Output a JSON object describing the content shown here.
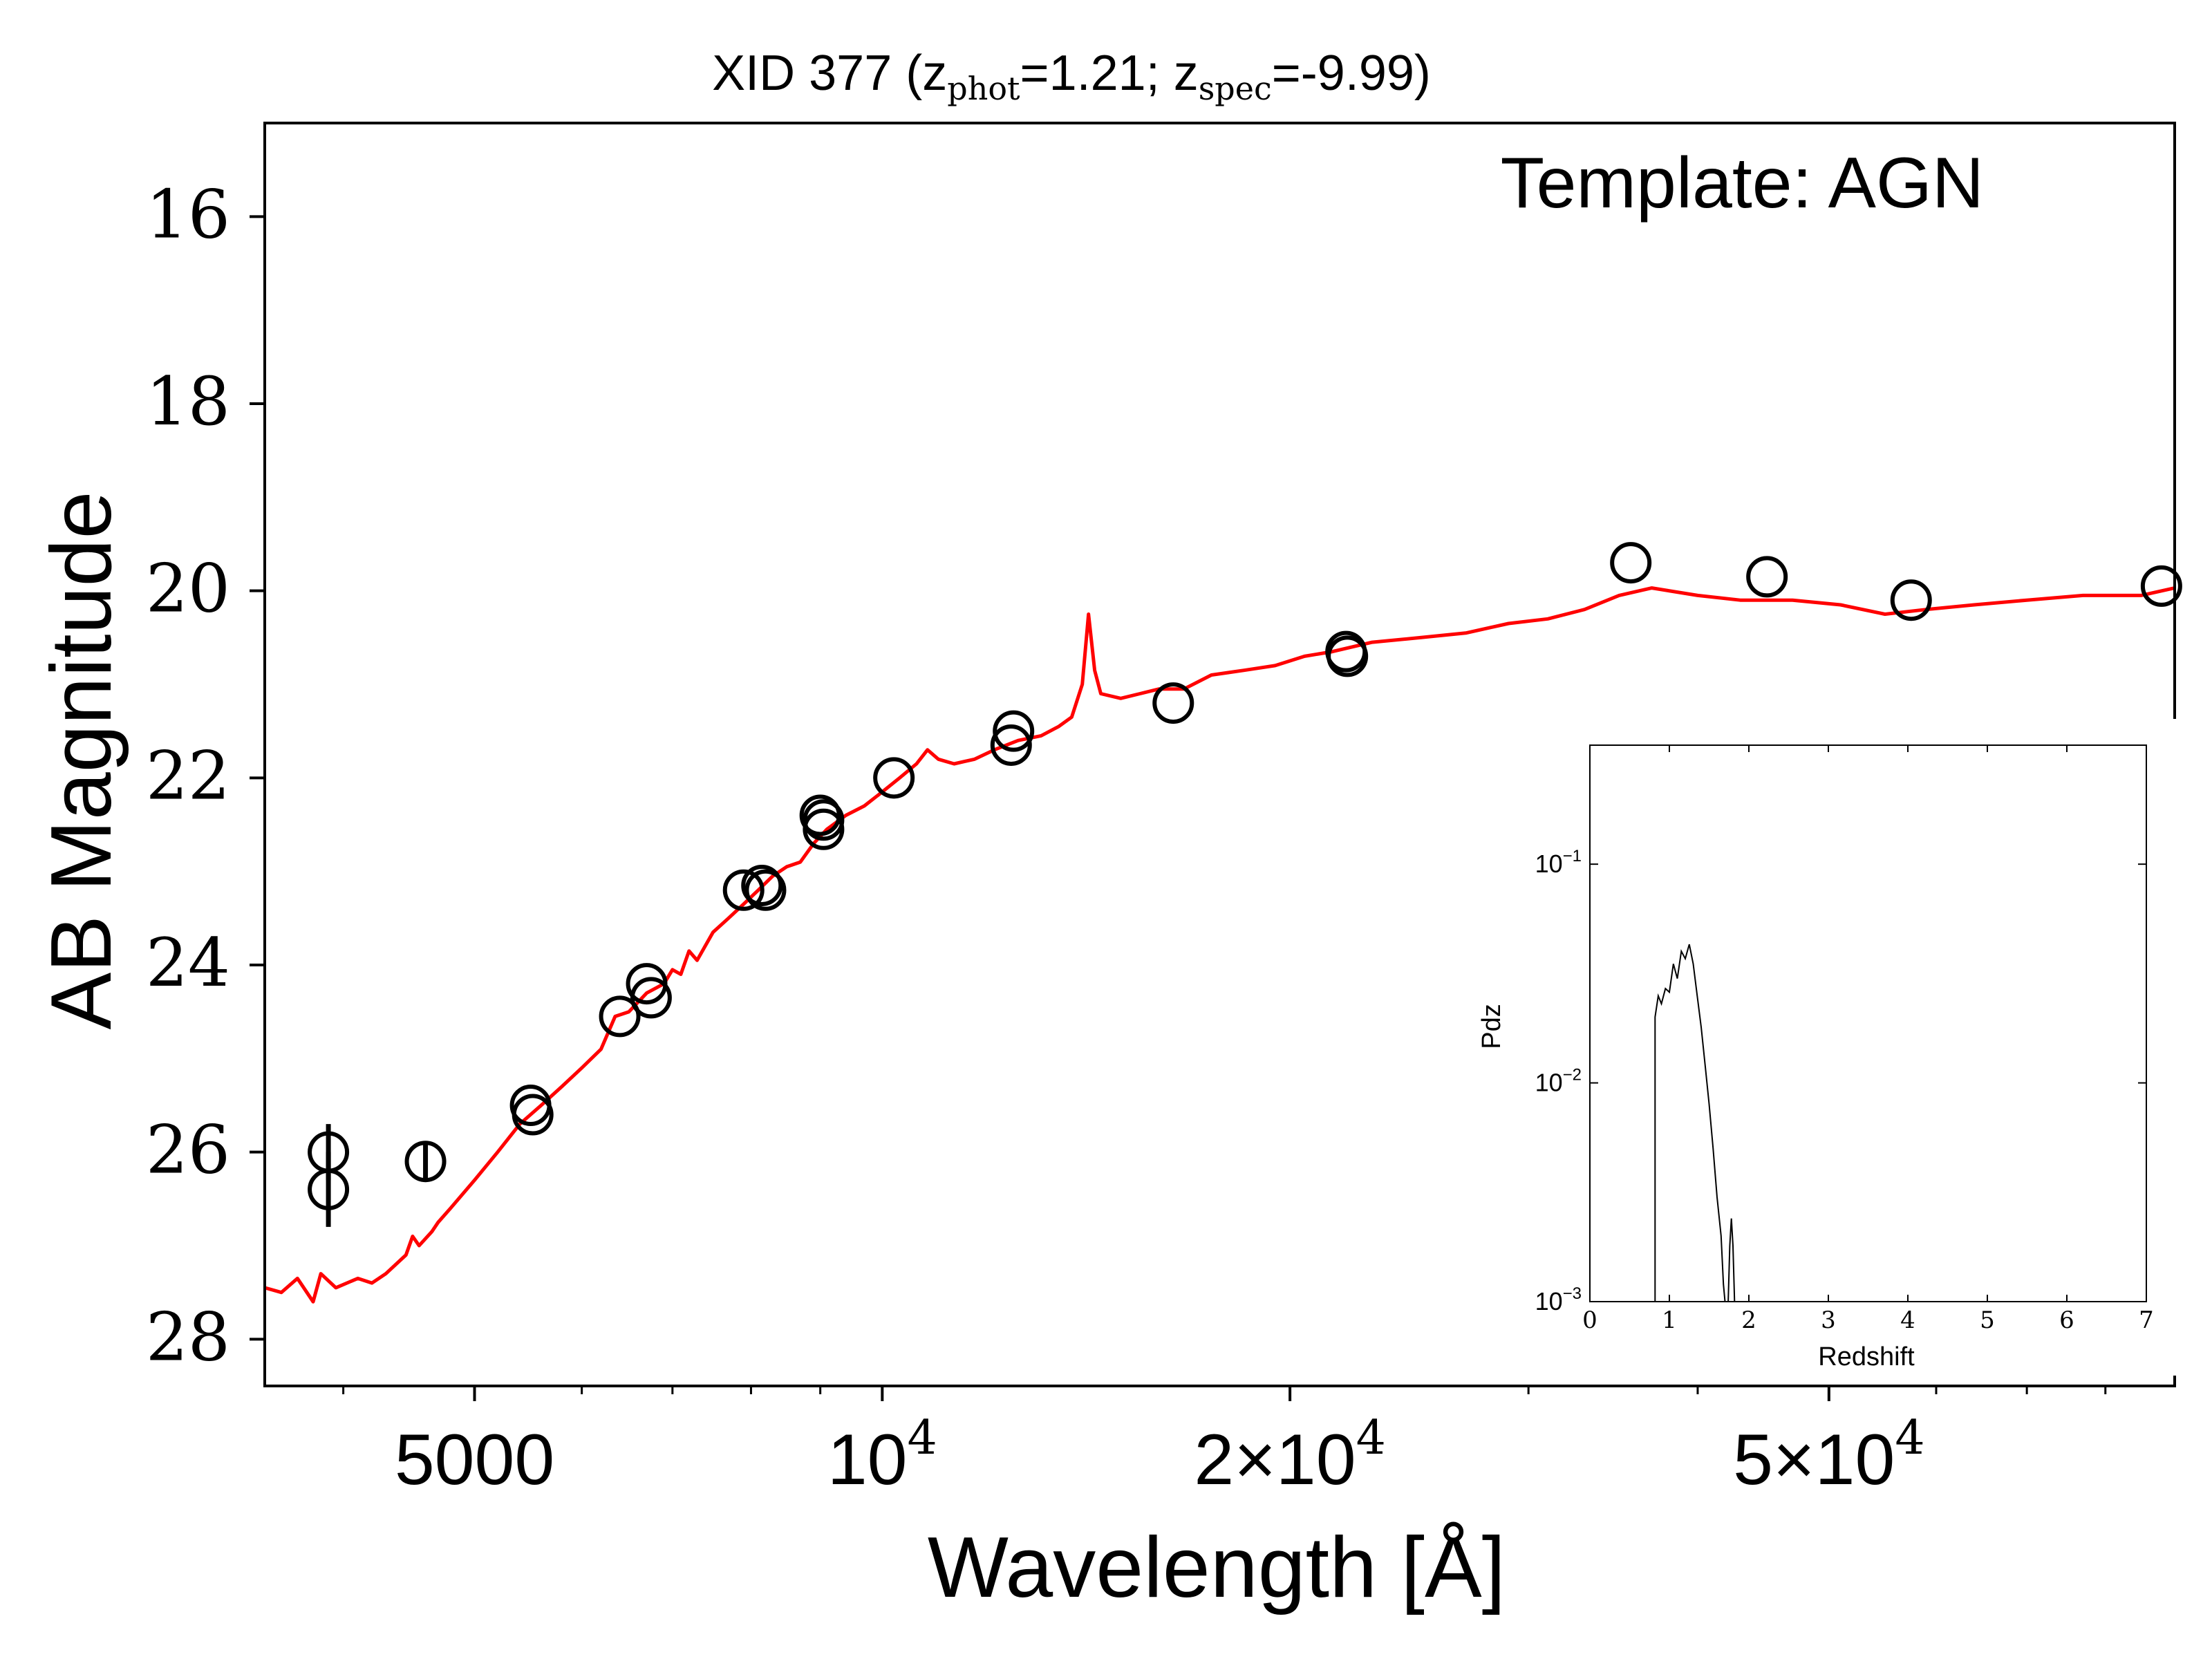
{
  "chart_data": [
    {
      "type": "scatter",
      "title_parts": [
        "XID 377 (z",
        "phot",
        "=1.21; z",
        "spec",
        "=-9.99)"
      ],
      "annotation": "Template: AGN",
      "xlabel": "Wavelength [Å]",
      "ylabel": "AB Magnitude",
      "xscale": "log",
      "xlim": [
        3500,
        90000
      ],
      "ylim": [
        28.5,
        15
      ],
      "y_inverted": true,
      "xticks": [
        {
          "value": 5000,
          "base": "5000",
          "exp": ""
        },
        {
          "value": 10000,
          "base": "10",
          "exp": "4"
        },
        {
          "value": 20000,
          "base": "2×10",
          "exp": "4"
        },
        {
          "value": 50000,
          "base": "5×10",
          "exp": "4"
        }
      ],
      "yticks": [
        16,
        18,
        20,
        22,
        24,
        26,
        28
      ],
      "colors": {
        "template": "#ff0000",
        "points": "#000000"
      },
      "series": [
        {
          "name": "photometry",
          "points": [
            {
              "x": 3900,
              "y": 26.0,
              "err": 0.3
            },
            {
              "x": 3900,
              "y": 26.4,
              "err": 0.4
            },
            {
              "x": 4600,
              "y": 26.1,
              "err": 0.2
            },
            {
              "x": 5500,
              "y": 25.5
            },
            {
              "x": 5520,
              "y": 25.6
            },
            {
              "x": 6400,
              "y": 24.55
            },
            {
              "x": 6700,
              "y": 24.2
            },
            {
              "x": 6750,
              "y": 24.35
            },
            {
              "x": 7900,
              "y": 23.2
            },
            {
              "x": 8150,
              "y": 23.15
            },
            {
              "x": 8200,
              "y": 23.2
            },
            {
              "x": 9000,
              "y": 22.4
            },
            {
              "x": 9050,
              "y": 22.45
            },
            {
              "x": 9050,
              "y": 22.55
            },
            {
              "x": 10200,
              "y": 22.0
            },
            {
              "x": 12500,
              "y": 21.5
            },
            {
              "x": 12450,
              "y": 21.65
            },
            {
              "x": 16400,
              "y": 21.2
            },
            {
              "x": 22000,
              "y": 20.65
            },
            {
              "x": 22050,
              "y": 20.7
            },
            {
              "x": 35700,
              "y": 19.7
            },
            {
              "x": 45000,
              "y": 19.85
            },
            {
              "x": 57500,
              "y": 20.1
            },
            {
              "x": 88000,
              "y": 19.95
            }
          ]
        },
        {
          "name": "template",
          "line": [
            [
              3500,
              27.45
            ],
            [
              3600,
              27.5
            ],
            [
              3700,
              27.35
            ],
            [
              3800,
              27.6
            ],
            [
              3850,
              27.3
            ],
            [
              3950,
              27.45
            ],
            [
              4100,
              27.35
            ],
            [
              4200,
              27.4
            ],
            [
              4300,
              27.3
            ],
            [
              4450,
              27.1
            ],
            [
              4500,
              26.9
            ],
            [
              4550,
              27.0
            ],
            [
              4650,
              26.85
            ],
            [
              4700,
              26.75
            ],
            [
              4800,
              26.6
            ],
            [
              5000,
              26.3
            ],
            [
              5200,
              26.0
            ],
            [
              5400,
              25.7
            ],
            [
              5600,
              25.5
            ],
            [
              5800,
              25.3
            ],
            [
              6000,
              25.1
            ],
            [
              6200,
              24.9
            ],
            [
              6350,
              24.55
            ],
            [
              6500,
              24.5
            ],
            [
              6700,
              24.3
            ],
            [
              6900,
              24.2
            ],
            [
              7000,
              24.05
            ],
            [
              7100,
              24.1
            ],
            [
              7200,
              23.85
            ],
            [
              7300,
              23.95
            ],
            [
              7500,
              23.65
            ],
            [
              7700,
              23.5
            ],
            [
              7900,
              23.35
            ],
            [
              8100,
              23.2
            ],
            [
              8300,
              23.05
            ],
            [
              8500,
              22.95
            ],
            [
              8700,
              22.9
            ],
            [
              8900,
              22.7
            ],
            [
              9100,
              22.55
            ],
            [
              9400,
              22.4
            ],
            [
              9700,
              22.3
            ],
            [
              10000,
              22.15
            ],
            [
              10300,
              22.0
            ],
            [
              10600,
              21.85
            ],
            [
              10800,
              21.7
            ],
            [
              11000,
              21.8
            ],
            [
              11300,
              21.85
            ],
            [
              11700,
              21.8
            ],
            [
              12100,
              21.7
            ],
            [
              12600,
              21.6
            ],
            [
              13100,
              21.55
            ],
            [
              13500,
              21.45
            ],
            [
              13800,
              21.35
            ],
            [
              14050,
              21.0
            ],
            [
              14200,
              20.25
            ],
            [
              14350,
              20.85
            ],
            [
              14500,
              21.1
            ],
            [
              15000,
              21.15
            ],
            [
              15500,
              21.1
            ],
            [
              16000,
              21.05
            ],
            [
              16700,
              21.05
            ],
            [
              17500,
              20.9
            ],
            [
              18500,
              20.85
            ],
            [
              19500,
              20.8
            ],
            [
              20500,
              20.7
            ],
            [
              21500,
              20.65
            ],
            [
              23000,
              20.55
            ],
            [
              25000,
              20.5
            ],
            [
              27000,
              20.45
            ],
            [
              29000,
              20.35
            ],
            [
              31000,
              20.3
            ],
            [
              33000,
              20.2
            ],
            [
              35000,
              20.05
            ],
            [
              37000,
              19.97
            ],
            [
              40000,
              20.05
            ],
            [
              43000,
              20.1
            ],
            [
              47000,
              20.1
            ],
            [
              51000,
              20.15
            ],
            [
              55000,
              20.25
            ],
            [
              59000,
              20.2
            ],
            [
              64000,
              20.15
            ],
            [
              70000,
              20.1
            ],
            [
              77000,
              20.05
            ],
            [
              85000,
              20.05
            ],
            [
              90000,
              19.97
            ]
          ]
        }
      ]
    },
    {
      "type": "line",
      "xlabel": "Redshift",
      "ylabel": "Pdz",
      "yscale": "log",
      "xlim": [
        0,
        7
      ],
      "ylim": [
        0.001,
        0.35
      ],
      "xticks": [
        0,
        1,
        2,
        3,
        4,
        5,
        6,
        7
      ],
      "yticks": [
        {
          "value": 0.1,
          "base": "10",
          "exp": "−1"
        },
        {
          "value": 0.01,
          "base": "10",
          "exp": "−2"
        },
        {
          "value": 0.001,
          "base": "10",
          "exp": "−3"
        }
      ],
      "series": [
        {
          "name": "pdz",
          "line": [
            [
              0.82,
              0.001
            ],
            [
              0.82,
              0.02
            ],
            [
              0.86,
              0.025
            ],
            [
              0.9,
              0.023
            ],
            [
              0.95,
              0.027
            ],
            [
              1.0,
              0.026
            ],
            [
              1.05,
              0.035
            ],
            [
              1.1,
              0.03
            ],
            [
              1.15,
              0.04
            ],
            [
              1.2,
              0.037
            ],
            [
              1.25,
              0.043
            ],
            [
              1.3,
              0.035
            ],
            [
              1.35,
              0.025
            ],
            [
              1.4,
              0.018
            ],
            [
              1.45,
              0.012
            ],
            [
              1.5,
              0.008
            ],
            [
              1.55,
              0.005
            ],
            [
              1.6,
              0.003
            ],
            [
              1.65,
              0.002
            ],
            [
              1.68,
              0.0012
            ],
            [
              1.7,
              0.001
            ]
          ]
        },
        {
          "name": "pdz-secondary",
          "line": [
            [
              1.74,
              0.001
            ],
            [
              1.76,
              0.0018
            ],
            [
              1.78,
              0.0024
            ],
            [
              1.8,
              0.0018
            ],
            [
              1.82,
              0.001
            ]
          ]
        }
      ]
    }
  ]
}
